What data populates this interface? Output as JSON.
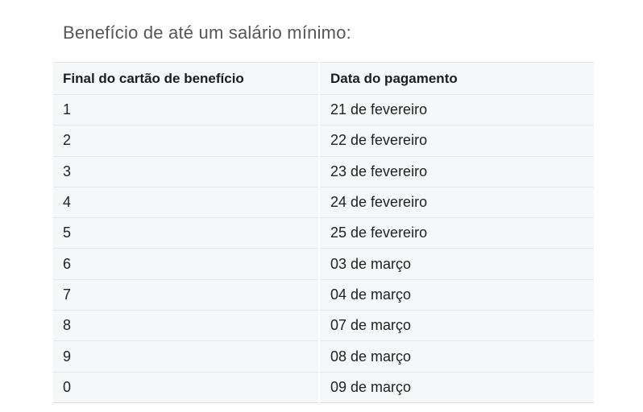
{
  "page": {
    "background_color": "#ffffff",
    "title": "Benefício de até um salário mínimo:"
  },
  "table": {
    "headers": [
      "Final do cartão de benefício",
      "Data do pagamento"
    ],
    "rows": [
      {
        "final": "1",
        "date": "21 de fevereiro"
      },
      {
        "final": "2",
        "date": "22 de fevereiro"
      },
      {
        "final": "3",
        "date": "23 de fevereiro"
      },
      {
        "final": "4",
        "date": "24 de fevereiro"
      },
      {
        "final": "5",
        "date": "25 de fevereiro"
      },
      {
        "final": "6",
        "date": "03 de março"
      },
      {
        "final": "7",
        "date": "04 de março"
      },
      {
        "final": "8",
        "date": "07 de março"
      },
      {
        "final": "9",
        "date": "08 de março"
      },
      {
        "final": "0",
        "date": "09 de março"
      }
    ],
    "colors": {
      "cell_background": "#f6f7f8",
      "row_border": "#e5e6e9",
      "column_divider": "#ffffff",
      "header_text": "#1c1d1f",
      "cell_text": "#202124",
      "title_text": "#55565a"
    }
  }
}
